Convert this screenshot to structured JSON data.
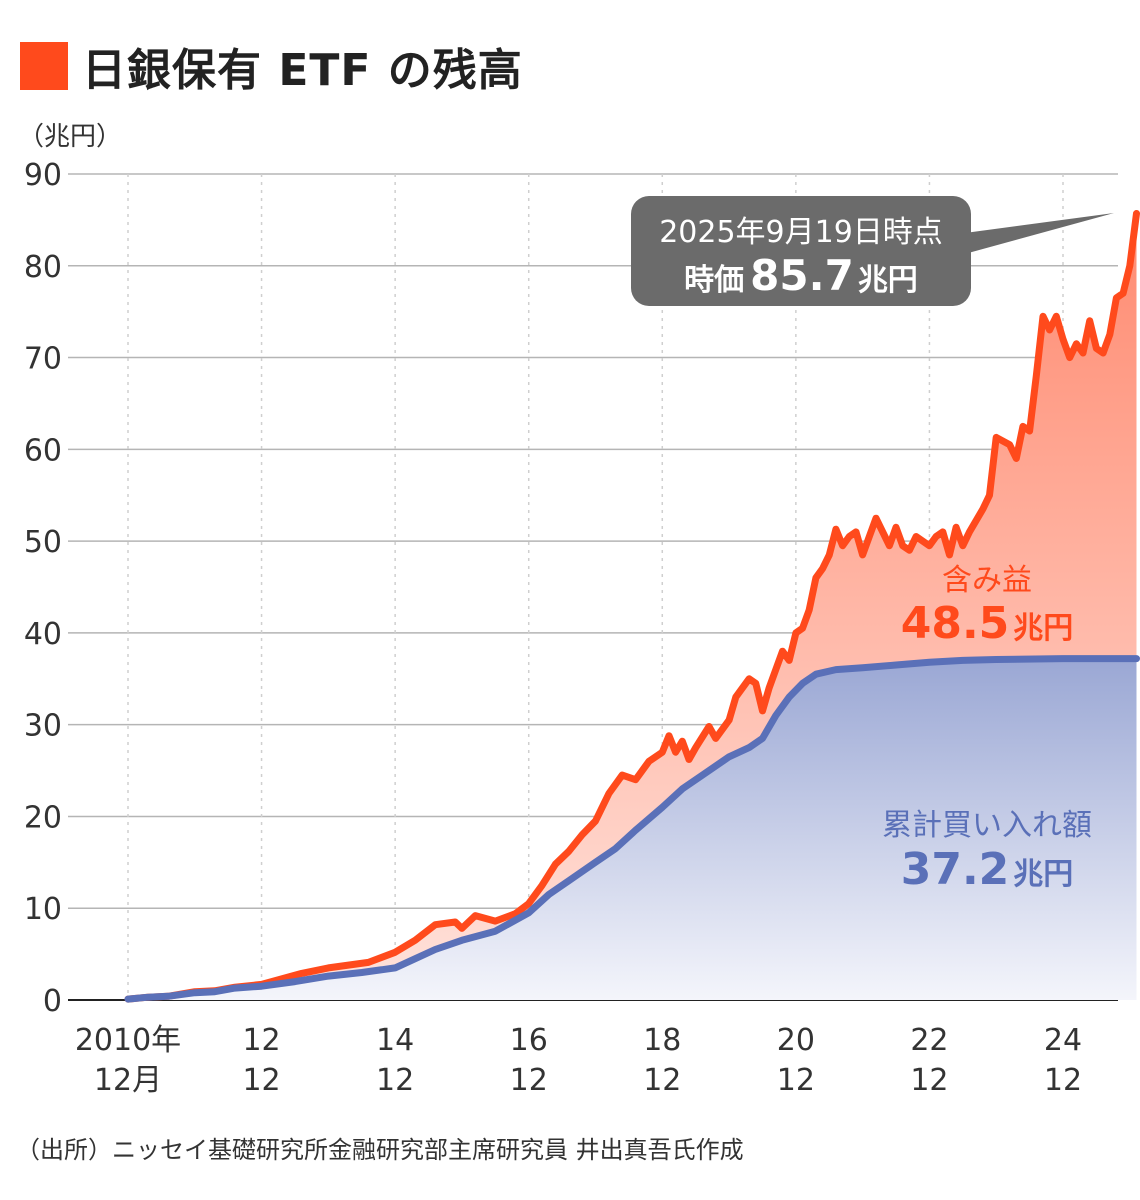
{
  "title": "日銀保有 ETF の残高",
  "unit_label": "（兆円）",
  "source_note": "（出所）ニッセイ基礎研究所金融研究部主席研究員 井出真吾氏作成",
  "colors": {
    "accent": "#ff4a1c",
    "market": "#ff4a1c",
    "purchase": "#5a70b8",
    "callout_bg": "#6b6b6b"
  },
  "callout": {
    "line1": "2025年9月19日時点",
    "prefix": "時価",
    "value": "85.7",
    "unit": "兆円"
  },
  "gain_label": {
    "label": "含み益",
    "value": "48.5",
    "unit": "兆円"
  },
  "purchase_label": {
    "label": "累計買い入れ額",
    "value": "37.2",
    "unit": "兆円"
  },
  "chart_data": {
    "type": "area",
    "ylim": [
      0,
      90
    ],
    "y_ticks": [
      "0",
      "10",
      "20",
      "30",
      "40",
      "50",
      "60",
      "70",
      "80",
      "90"
    ],
    "x_ticks": [
      {
        "t": 0,
        "line1": "2010年",
        "line2": "12月"
      },
      {
        "t": 2,
        "line1": "12",
        "line2": "12"
      },
      {
        "t": 4,
        "line1": "14",
        "line2": "12"
      },
      {
        "t": 6,
        "line1": "16",
        "line2": "12"
      },
      {
        "t": 8,
        "line1": "18",
        "line2": "12"
      },
      {
        "t": 10,
        "line1": "20",
        "line2": "12"
      },
      {
        "t": 12,
        "line1": "22",
        "line2": "12"
      },
      {
        "t": 14,
        "line1": "24",
        "line2": "12"
      }
    ],
    "x_max": 14.75,
    "series": [
      {
        "name": "時価",
        "points": [
          [
            0,
            0.1
          ],
          [
            0.3,
            0.3
          ],
          [
            0.6,
            0.4
          ],
          [
            1.0,
            0.9
          ],
          [
            1.3,
            1.0
          ],
          [
            1.6,
            1.4
          ],
          [
            2.0,
            1.7
          ],
          [
            2.3,
            2.3
          ],
          [
            2.6,
            2.9
          ],
          [
            3.0,
            3.5
          ],
          [
            3.3,
            3.8
          ],
          [
            3.6,
            4.1
          ],
          [
            4.0,
            5.2
          ],
          [
            4.3,
            6.5
          ],
          [
            4.6,
            8.2
          ],
          [
            4.9,
            8.5
          ],
          [
            5.0,
            7.8
          ],
          [
            5.2,
            9.2
          ],
          [
            5.5,
            8.6
          ],
          [
            5.8,
            9.4
          ],
          [
            6.0,
            10.5
          ],
          [
            6.2,
            12.5
          ],
          [
            6.4,
            14.8
          ],
          [
            6.6,
            16.2
          ],
          [
            6.8,
            18.0
          ],
          [
            7.0,
            19.5
          ],
          [
            7.2,
            22.5
          ],
          [
            7.4,
            24.5
          ],
          [
            7.6,
            24.0
          ],
          [
            7.8,
            26.0
          ],
          [
            8.0,
            27.0
          ],
          [
            8.1,
            28.8
          ],
          [
            8.2,
            27.0
          ],
          [
            8.3,
            28.2
          ],
          [
            8.4,
            26.2
          ],
          [
            8.5,
            27.5
          ],
          [
            8.7,
            29.8
          ],
          [
            8.8,
            28.5
          ],
          [
            9.0,
            30.5
          ],
          [
            9.1,
            33.0
          ],
          [
            9.3,
            35.0
          ],
          [
            9.4,
            34.5
          ],
          [
            9.5,
            31.5
          ],
          [
            9.6,
            34.0
          ],
          [
            9.7,
            36.0
          ],
          [
            9.8,
            38.0
          ],
          [
            9.9,
            37.0
          ],
          [
            10.0,
            40.0
          ],
          [
            10.1,
            40.5
          ],
          [
            10.2,
            42.5
          ],
          [
            10.3,
            46.0
          ],
          [
            10.4,
            47.0
          ],
          [
            10.5,
            48.5
          ],
          [
            10.6,
            51.3
          ],
          [
            10.7,
            49.5
          ],
          [
            10.8,
            50.5
          ],
          [
            10.9,
            51.0
          ],
          [
            11.0,
            48.5
          ],
          [
            11.2,
            52.5
          ],
          [
            11.3,
            51.0
          ],
          [
            11.4,
            49.5
          ],
          [
            11.5,
            51.5
          ],
          [
            11.6,
            49.5
          ],
          [
            11.7,
            49.0
          ],
          [
            11.8,
            50.5
          ],
          [
            12.0,
            49.5
          ],
          [
            12.1,
            50.5
          ],
          [
            12.2,
            51.0
          ],
          [
            12.3,
            48.5
          ],
          [
            12.4,
            51.5
          ],
          [
            12.5,
            49.5
          ],
          [
            12.6,
            51.0
          ],
          [
            12.8,
            53.5
          ],
          [
            12.9,
            55.0
          ],
          [
            13.0,
            61.3
          ],
          [
            13.2,
            60.5
          ],
          [
            13.3,
            59.0
          ],
          [
            13.4,
            62.5
          ],
          [
            13.5,
            62.0
          ],
          [
            13.6,
            68.0
          ],
          [
            13.7,
            74.5
          ],
          [
            13.8,
            73.0
          ],
          [
            13.9,
            74.5
          ],
          [
            14.0,
            72.0
          ],
          [
            14.1,
            70.0
          ],
          [
            14.2,
            71.5
          ],
          [
            14.3,
            70.5
          ],
          [
            14.4,
            74.0
          ],
          [
            14.5,
            71.0
          ],
          [
            14.6,
            70.5
          ],
          [
            14.7,
            72.5
          ],
          [
            14.8,
            76.5
          ],
          [
            14.9,
            77.0
          ],
          [
            15.0,
            80.0
          ],
          [
            15.1,
            85.7
          ]
        ]
      },
      {
        "name": "累計買い入れ額",
        "points": [
          [
            0,
            0.1
          ],
          [
            0.3,
            0.3
          ],
          [
            0.6,
            0.4
          ],
          [
            1.0,
            0.8
          ],
          [
            1.3,
            0.9
          ],
          [
            1.6,
            1.3
          ],
          [
            2.0,
            1.5
          ],
          [
            2.5,
            2.0
          ],
          [
            3.0,
            2.6
          ],
          [
            3.5,
            3.0
          ],
          [
            4.0,
            3.5
          ],
          [
            4.3,
            4.5
          ],
          [
            4.6,
            5.5
          ],
          [
            5.0,
            6.5
          ],
          [
            5.5,
            7.5
          ],
          [
            6.0,
            9.5
          ],
          [
            6.3,
            11.5
          ],
          [
            6.6,
            13.0
          ],
          [
            7.0,
            15.0
          ],
          [
            7.3,
            16.5
          ],
          [
            7.6,
            18.5
          ],
          [
            8.0,
            21.0
          ],
          [
            8.3,
            23.0
          ],
          [
            8.6,
            24.5
          ],
          [
            9.0,
            26.5
          ],
          [
            9.3,
            27.5
          ],
          [
            9.5,
            28.5
          ],
          [
            9.7,
            31.0
          ],
          [
            9.9,
            33.0
          ],
          [
            10.1,
            34.5
          ],
          [
            10.3,
            35.5
          ],
          [
            10.6,
            36.0
          ],
          [
            11.0,
            36.2
          ],
          [
            11.5,
            36.5
          ],
          [
            12.0,
            36.8
          ],
          [
            12.5,
            37.0
          ],
          [
            13.0,
            37.1
          ],
          [
            14.0,
            37.2
          ],
          [
            15.1,
            37.2
          ]
        ]
      }
    ]
  }
}
